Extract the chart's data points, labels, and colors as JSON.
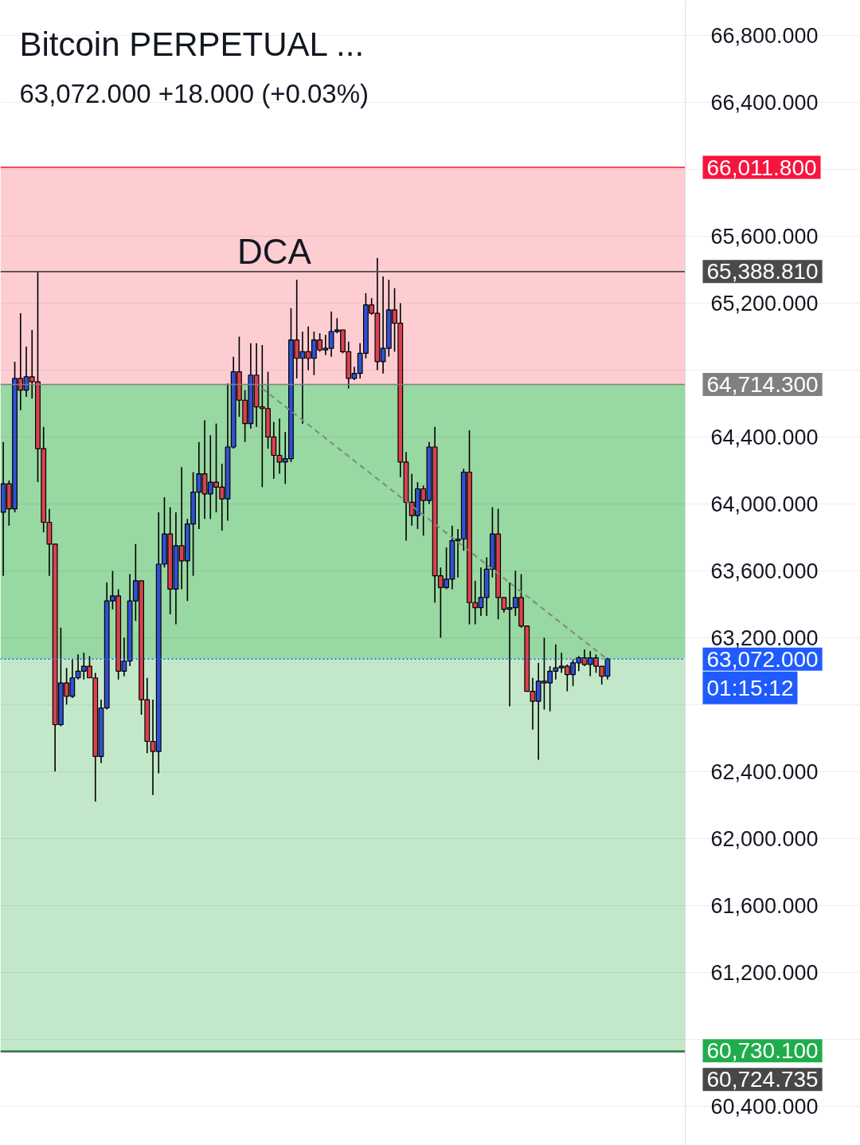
{
  "chart_data": {
    "type": "candlestick",
    "title": "Bitcoin PERPETUAL ...",
    "subtitle": "63,072.000  +18.000 (+0.03%)",
    "categories": [
      null,
      null,
      null,
      null,
      null,
      null,
      null,
      null,
      null,
      null,
      null,
      null,
      null,
      null,
      null,
      null,
      null,
      null,
      null,
      null,
      null,
      null,
      null,
      null,
      null,
      null,
      null,
      null,
      null,
      null,
      null,
      null,
      null,
      null,
      null,
      null,
      null,
      null,
      null,
      null,
      null,
      null,
      null,
      null,
      null,
      null,
      null,
      null,
      null,
      null,
      null,
      null,
      null,
      null,
      null,
      null,
      null,
      null,
      null,
      null,
      null,
      null,
      null,
      null,
      null,
      null,
      null,
      null,
      null,
      null,
      null,
      null,
      null,
      null,
      null,
      null,
      null,
      null,
      null,
      null,
      null,
      null,
      null,
      null,
      null,
      null,
      null,
      null,
      null,
      null,
      null,
      null,
      null,
      null,
      null,
      null,
      null,
      null,
      null,
      null,
      null,
      null,
      null,
      null,
      null,
      null,
      null,
      null,
      null,
      null,
      null,
      null,
      null,
      null,
      null,
      null,
      null,
      null,
      null
    ],
    "ohlc": [
      [
        63950,
        64370,
        63570,
        64120
      ],
      [
        64120,
        64140,
        63870,
        63970
      ],
      [
        63970,
        64850,
        63950,
        64750
      ],
      [
        64750,
        65140,
        64560,
        64680
      ],
      [
        64680,
        64940,
        64640,
        64760
      ],
      [
        64760,
        65040,
        64630,
        64730
      ],
      [
        64730,
        65390,
        64130,
        64330
      ],
      [
        64330,
        64460,
        63830,
        63890
      ],
      [
        63890,
        63970,
        63570,
        63760
      ],
      [
        63760,
        63760,
        62400,
        62680
      ],
      [
        62680,
        63260,
        62670,
        62930
      ],
      [
        62930,
        63020,
        62800,
        62850
      ],
      [
        62850,
        63070,
        62840,
        62960
      ],
      [
        62960,
        63100,
        62950,
        63000
      ],
      [
        63000,
        63110,
        62950,
        63030
      ],
      [
        63030,
        63090,
        62960,
        62960
      ],
      [
        62960,
        62990,
        62220,
        62490
      ],
      [
        62490,
        62830,
        62450,
        62780
      ],
      [
        62780,
        63530,
        62770,
        63420
      ],
      [
        63420,
        63600,
        63370,
        63450
      ],
      [
        63450,
        63490,
        62950,
        63000
      ],
      [
        63000,
        63200,
        62970,
        63060
      ],
      [
        63060,
        63580,
        63030,
        63420
      ],
      [
        63420,
        63760,
        63300,
        63540
      ],
      [
        63540,
        63540,
        62740,
        62830
      ],
      [
        62830,
        62960,
        62510,
        62580
      ],
      [
        62580,
        62830,
        62260,
        62520
      ],
      [
        62520,
        63950,
        62390,
        63640
      ],
      [
        63640,
        64040,
        63620,
        63820
      ],
      [
        63820,
        63980,
        63340,
        63490
      ],
      [
        63490,
        63950,
        63280,
        63750
      ],
      [
        63750,
        64220,
        63490,
        63660
      ],
      [
        63660,
        63910,
        63420,
        63880
      ],
      [
        63880,
        64190,
        63570,
        64070
      ],
      [
        64070,
        64370,
        63850,
        64180
      ],
      [
        64180,
        64500,
        63910,
        64060
      ],
      [
        64060,
        64410,
        63910,
        64130
      ],
      [
        64130,
        64480,
        63950,
        64100
      ],
      [
        64100,
        64240,
        63840,
        64030
      ],
      [
        64030,
        64720,
        63900,
        64340
      ],
      [
        64340,
        64880,
        64330,
        64790
      ],
      [
        64790,
        65000,
        64520,
        64620
      ],
      [
        64620,
        64680,
        64370,
        64480
      ],
      [
        64480,
        64960,
        64450,
        64770
      ],
      [
        64770,
        64960,
        64460,
        64580
      ],
      [
        64580,
        64950,
        64100,
        64570
      ],
      [
        64570,
        64790,
        64330,
        64400
      ],
      [
        64400,
        64490,
        64150,
        64290
      ],
      [
        64290,
        64510,
        64180,
        64250
      ],
      [
        64250,
        64430,
        64120,
        64270
      ],
      [
        64270,
        65170,
        64250,
        64980
      ],
      [
        64980,
        65340,
        64750,
        64870
      ],
      [
        64870,
        65030,
        64480,
        64910
      ],
      [
        64910,
        65060,
        64800,
        64870
      ],
      [
        64870,
        65030,
        64770,
        64980
      ],
      [
        64980,
        65020,
        64910,
        64920
      ],
      [
        64920,
        65010,
        64890,
        64930
      ],
      [
        64930,
        65150,
        64880,
        65030
      ],
      [
        65030,
        65110,
        65020,
        65040
      ],
      [
        65040,
        65040,
        64900,
        64910
      ],
      [
        64910,
        64970,
        64690,
        64750
      ],
      [
        64750,
        64820,
        64740,
        64780
      ],
      [
        64780,
        64960,
        64750,
        64900
      ],
      [
        64900,
        65260,
        64870,
        65190
      ],
      [
        65190,
        65230,
        65130,
        65140
      ],
      [
        65140,
        65470,
        64800,
        64850
      ],
      [
        64850,
        65360,
        64780,
        64930
      ],
      [
        64930,
        65340,
        64880,
        65160
      ],
      [
        65160,
        65290,
        64910,
        65080
      ],
      [
        65080,
        65200,
        64160,
        64250
      ],
      [
        64250,
        64310,
        63780,
        64010
      ],
      [
        64010,
        64180,
        63870,
        63930
      ],
      [
        63930,
        64130,
        63850,
        64090
      ],
      [
        64090,
        64110,
        63810,
        64020
      ],
      [
        64020,
        64370,
        64000,
        64340
      ],
      [
        64340,
        64460,
        63410,
        63570
      ],
      [
        63570,
        63620,
        63200,
        63500
      ],
      [
        63500,
        63740,
        63490,
        63550
      ],
      [
        63550,
        63870,
        63490,
        63780
      ],
      [
        63780,
        63850,
        63560,
        63790
      ],
      [
        63790,
        64210,
        63720,
        64190
      ],
      [
        64190,
        64440,
        63280,
        63410
      ],
      [
        63410,
        63540,
        63280,
        63380
      ],
      [
        63380,
        63620,
        63330,
        63440
      ],
      [
        63440,
        63680,
        63330,
        63610
      ],
      [
        63610,
        63980,
        63560,
        63820
      ],
      [
        63820,
        63970,
        63310,
        63440
      ],
      [
        63440,
        63440,
        63350,
        63370
      ],
      [
        63370,
        63530,
        62790,
        63380
      ],
      [
        63380,
        63600,
        63330,
        63440
      ],
      [
        63440,
        63580,
        63260,
        63270
      ],
      [
        63270,
        63270,
        62880,
        62880
      ],
      [
        62880,
        62960,
        62650,
        62820
      ],
      [
        62820,
        63050,
        62470,
        62940
      ],
      [
        62940,
        63200,
        62770,
        62930
      ],
      [
        62930,
        63030,
        62760,
        63000
      ],
      [
        63000,
        63160,
        62950,
        63020
      ],
      [
        63020,
        63110,
        62990,
        63030
      ],
      [
        63030,
        63040,
        62880,
        62980
      ],
      [
        62980,
        63070,
        62910,
        63050
      ],
      [
        63050,
        63090,
        63000,
        63080
      ],
      [
        63080,
        63130,
        63030,
        63040
      ],
      [
        63040,
        63120,
        62970,
        63080
      ],
      [
        63080,
        63100,
        62990,
        63030
      ],
      [
        63030,
        63030,
        62920,
        62970
      ],
      [
        62970,
        63080,
        62950,
        63072
      ],
      null,
      null,
      null,
      null,
      null,
      null,
      null,
      null,
      null,
      null,
      null,
      null,
      null
    ],
    "colors": [
      "#3151d3",
      "#d9424f",
      "#3151d3",
      "#d9424f",
      "#3151d3",
      "#d9424f",
      "#d9424f",
      "#d9424f",
      "#d9424f",
      "#d9424f",
      "#3151d3",
      "#d9424f",
      "#3151d3",
      "#3151d3",
      "#3151d3",
      "#d9424f",
      "#d9424f",
      "#3151d3",
      "#3151d3",
      "#3151d3",
      "#d9424f",
      "#3151d3",
      "#3151d3",
      "#3151d3",
      "#d9424f",
      "#d9424f",
      "#d9424f",
      "#3151d3",
      "#3151d3",
      "#d9424f",
      "#3151d3",
      "#d9424f",
      "#3151d3",
      "#3151d3",
      "#3151d3",
      "#d9424f",
      "#3151d3",
      "#d9424f",
      "#d9424f",
      "#3151d3",
      "#3151d3",
      "#d9424f",
      "#d9424f",
      "#3151d3",
      "#d9424f",
      "#d9424f",
      "#d9424f",
      "#d9424f",
      "#d9424f",
      "#3151d3",
      "#3151d3",
      "#d9424f",
      "#3151d3",
      "#d9424f",
      "#3151d3",
      "#d9424f",
      "#3151d3",
      "#3151d3",
      "#3151d3",
      "#d9424f",
      "#d9424f",
      "#3151d3",
      "#3151d3",
      "#3151d3",
      "#d9424f",
      "#d9424f",
      "#3151d3",
      "#3151d3",
      "#d9424f",
      "#d9424f",
      "#d9424f",
      "#d9424f",
      "#3151d3",
      "#d9424f",
      "#3151d3",
      "#d9424f",
      "#d9424f",
      "#3151d3",
      "#3151d3",
      "#3151d3",
      "#3151d3",
      "#d9424f",
      "#d9424f",
      "#3151d3",
      "#3151d3",
      "#3151d3",
      "#d9424f",
      "#d9424f",
      "#3151d3",
      "#3151d3",
      "#d9424f",
      "#d9424f",
      "#d9424f",
      "#3151d3",
      "#d9424f",
      "#3151d3",
      "#3151d3",
      "#3151d3",
      "#d9424f",
      "#3151d3",
      "#3151d3",
      "#d9424f",
      "#3151d3",
      "#d9424f",
      "#d9424f",
      "#3151d3",
      null,
      null,
      null,
      null,
      null,
      null,
      null,
      null,
      null,
      null,
      null,
      null,
      null
    ],
    "series": [
      {
        "type": "line",
        "color": "#7d8a80",
        "line_style": "dashed",
        "values": [
          null,
          null,
          null,
          null,
          null,
          null,
          null,
          null,
          null,
          null,
          null,
          null,
          null,
          null,
          null,
          null,
          null,
          null,
          null,
          null,
          null,
          null,
          null,
          null,
          null,
          null,
          null,
          null,
          null,
          null,
          null,
          null,
          null,
          null,
          null,
          null,
          null,
          null,
          null,
          null,
          null,
          null,
          null,
          null,
          null,
          64690,
          null,
          null,
          null,
          null,
          null,
          null,
          null,
          null,
          null,
          null,
          null,
          null,
          null,
          null,
          null,
          null,
          null,
          null,
          null,
          null,
          null,
          null,
          null,
          null,
          null,
          null,
          null,
          null,
          null,
          null,
          null,
          null,
          null,
          null,
          null,
          null,
          null,
          null,
          null,
          null,
          null,
          null,
          null,
          null,
          null,
          null,
          null,
          null,
          null,
          null,
          null,
          null,
          null,
          null,
          null,
          null,
          null,
          null,
          null,
          63070,
          null,
          null,
          null,
          null,
          null,
          null,
          null,
          null,
          null,
          null,
          null,
          null,
          null
        ]
      }
    ],
    "ylim": [
      60165,
      67010
    ],
    "yticks": [
      {
        "value": 60400,
        "label": "60,400.000"
      },
      {
        "value": 60800,
        "label": null
      },
      {
        "value": 61200,
        "label": "61,200.000"
      },
      {
        "value": 61600,
        "label": "61,600.000"
      },
      {
        "value": 62000,
        "label": "62,000.000"
      },
      {
        "value": 62400,
        "label": "62,400.000"
      },
      {
        "value": 62800,
        "label": null
      },
      {
        "value": 63200,
        "label": "63,200.000"
      },
      {
        "value": 63600,
        "label": "63,600.000"
      },
      {
        "value": 64000,
        "label": "64,000.000"
      },
      {
        "value": 64400,
        "label": "64,400.000"
      },
      {
        "value": 64800,
        "label": null
      },
      {
        "value": 65200,
        "label": "65,200.000"
      },
      {
        "value": 65600,
        "label": "65,600.000"
      },
      {
        "value": 66000,
        "label": null
      },
      {
        "value": 66400,
        "label": "66,400.000"
      },
      {
        "value": 66800,
        "label": "66,800.000"
      }
    ],
    "tick_labels": "y",
    "grid": "y",
    "bands": [
      {
        "axis": "y",
        "from": 64714.3,
        "to": 66011.8,
        "color": "#fdcdd2"
      },
      {
        "axis": "y",
        "from": 63072,
        "to": 64714.3,
        "color": "#98d8a2"
      },
      {
        "axis": "y",
        "from": 60730.1,
        "to": 63072,
        "color": "#c3e8c9"
      }
    ],
    "ref_lines": [
      {
        "axis": "y",
        "value": 66011.8,
        "label": "66,011.800",
        "color": "#f5163f"
      },
      {
        "axis": "y",
        "value": 65388.81,
        "label": "65,388.810",
        "color": "#4a4a4a"
      },
      {
        "axis": "y",
        "value": 64714.3,
        "label": "64,714.300",
        "color": "#808080"
      },
      {
        "axis": "y",
        "value": 63072,
        "label": "63,072.000\n01:15:12",
        "color": "#1f5bff",
        "line_style": "dotted"
      },
      {
        "axis": "y",
        "value": 60730.1,
        "label": "60,730.100",
        "color": "#1fad4b"
      },
      {
        "axis": "y",
        "value": 60724.735,
        "label": "60,724.735",
        "color": "#474747"
      }
    ],
    "annotations": [
      {
        "text": "DCA",
        "y": 65388.81
      }
    ]
  }
}
